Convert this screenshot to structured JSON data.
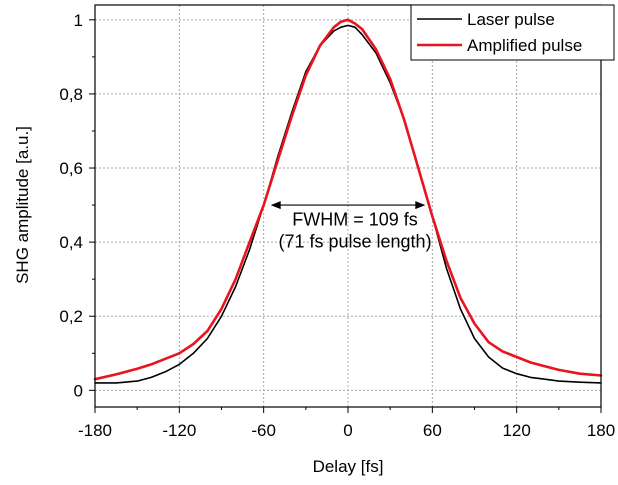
{
  "chart_data": {
    "type": "line",
    "title": "",
    "xlabel": "Delay [fs]",
    "ylabel": "SHG amplitude [a.u.]",
    "xlim": [
      -180,
      180
    ],
    "ylim": [
      -0.045,
      1.04
    ],
    "x_ticks": [
      -180,
      -120,
      -60,
      0,
      60,
      120,
      180
    ],
    "x_tick_labels": [
      "-180",
      "-120",
      "-60",
      "0",
      "60",
      "120",
      "180"
    ],
    "y_ticks": [
      0,
      0.2,
      0.4,
      0.6,
      0.8,
      1
    ],
    "y_tick_labels": [
      "0",
      "0,2",
      "0,4",
      "0,6",
      "0,8",
      "1"
    ],
    "grid": true,
    "legend_position": "top-right",
    "series": [
      {
        "name": "Laser pulse",
        "color": "#000000",
        "x": [
          -180,
          -165,
          -150,
          -140,
          -130,
          -120,
          -110,
          -100,
          -90,
          -80,
          -70,
          -60,
          -50,
          -40,
          -30,
          -20,
          -10,
          -5,
          0,
          5,
          10,
          20,
          30,
          40,
          50,
          60,
          70,
          80,
          90,
          100,
          110,
          120,
          130,
          140,
          150,
          165,
          180
        ],
        "y": [
          0.02,
          0.02,
          0.025,
          0.035,
          0.05,
          0.07,
          0.1,
          0.14,
          0.2,
          0.28,
          0.38,
          0.5,
          0.63,
          0.75,
          0.86,
          0.93,
          0.97,
          0.98,
          0.985,
          0.98,
          0.96,
          0.91,
          0.83,
          0.73,
          0.6,
          0.47,
          0.33,
          0.22,
          0.14,
          0.09,
          0.06,
          0.045,
          0.035,
          0.03,
          0.025,
          0.022,
          0.02
        ]
      },
      {
        "name": "Amplified pulse",
        "color": "#e8141e",
        "x": [
          -180,
          -165,
          -150,
          -140,
          -130,
          -120,
          -110,
          -100,
          -90,
          -80,
          -70,
          -60,
          -50,
          -40,
          -30,
          -20,
          -10,
          -5,
          0,
          5,
          10,
          20,
          30,
          40,
          50,
          60,
          70,
          80,
          90,
          100,
          110,
          120,
          130,
          140,
          150,
          165,
          180
        ],
        "y": [
          0.03,
          0.043,
          0.058,
          0.07,
          0.085,
          0.1,
          0.125,
          0.16,
          0.22,
          0.3,
          0.4,
          0.5,
          0.62,
          0.74,
          0.85,
          0.93,
          0.98,
          0.995,
          1.0,
          0.99,
          0.975,
          0.92,
          0.84,
          0.73,
          0.6,
          0.47,
          0.35,
          0.25,
          0.18,
          0.13,
          0.105,
          0.09,
          0.075,
          0.065,
          0.055,
          0.045,
          0.04
        ]
      }
    ],
    "annotations": {
      "arrow_x": [
        -55,
        55
      ],
      "arrow_y": 0.5,
      "text_line1": "FWHM = 109 fs",
      "text_line2": "(71 fs pulse length)",
      "text_x": 5,
      "text_y1": 0.445,
      "text_y2": 0.385
    }
  }
}
